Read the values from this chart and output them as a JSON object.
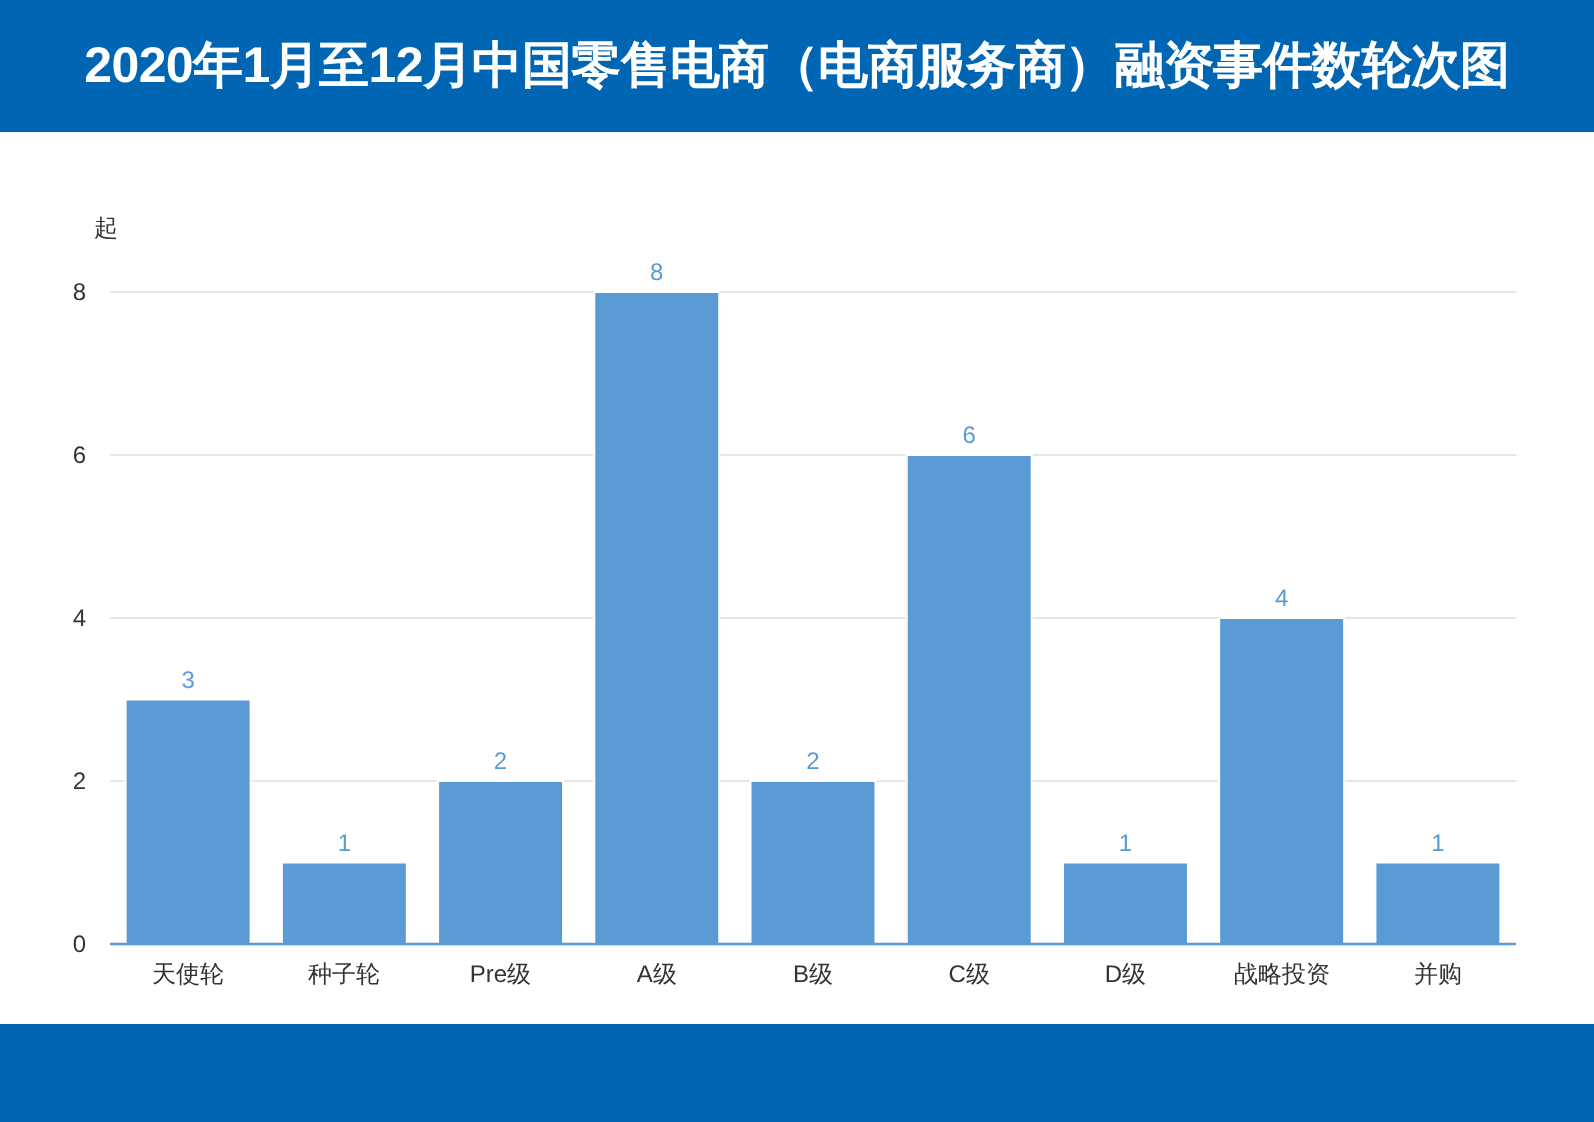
{
  "chart_data": {
    "type": "bar",
    "title": "2020年1月至12月中国零售电商（电商服务商）融资事件数轮次图",
    "ylabel": "起",
    "categories": [
      "天使轮",
      "种子轮",
      "Pre级",
      "A级",
      "B级",
      "C级",
      "D级",
      "战略投资",
      "并购"
    ],
    "values": [
      3,
      1,
      2,
      8,
      2,
      6,
      1,
      4,
      1
    ],
    "color": "#5b9bd5",
    "ylim": [
      0,
      8
    ],
    "yticks": [
      0,
      2,
      4,
      6,
      8
    ],
    "grid": "y",
    "data_labels": true
  }
}
